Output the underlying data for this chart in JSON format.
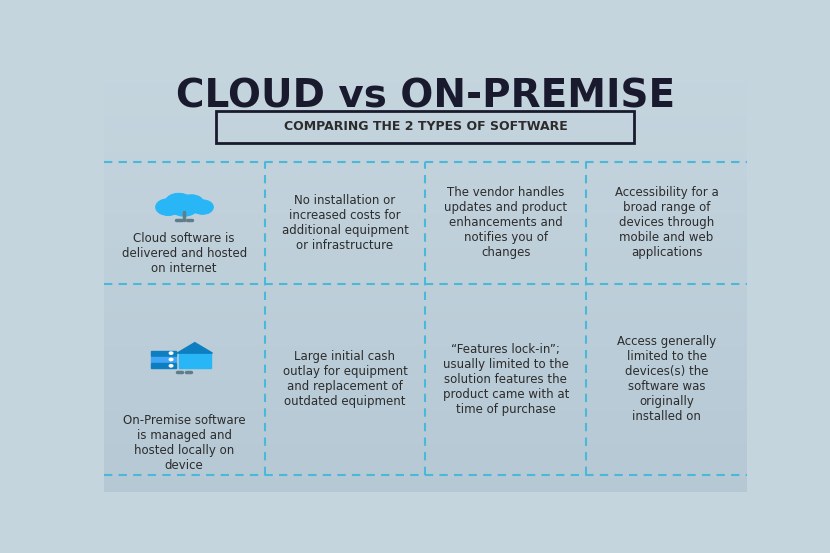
{
  "title": "CLOUD vs ON-PREMISE",
  "subtitle": "COMPARING THE 2 TYPES OF SOFTWARE",
  "bg_color_top": "#c5d5de",
  "bg_color_bottom": "#b5c8d4",
  "grid_line_color": "#4ab8d8",
  "title_color": "#1a1a2e",
  "text_color": "#2c2c2c",
  "subtitle_box_color": "#1a1a2e",
  "row1_texts": [
    "Cloud software is\ndelivered and hosted\non internet",
    "No installation or\nincreased costs for\nadditional equipment\nor infrastructure",
    "The vendor handles\nupdates and product\nenhancements and\nnotifies you of\nchanges",
    "Accessibility for a\nbroad range of\ndevices through\nmobile and web\napplications"
  ],
  "row2_texts": [
    "On-Premise software\nis managed and\nhosted locally on\ndevice",
    "Large initial cash\noutlay for equipment\nand replacement of\noutdated equipment",
    "“Features lock-in”;\nusually limited to the\nsolution features the\nproduct came with at\ntime of purchase",
    "Access generally\nlimited to the\ndevices(s) the\nsoftware was\noriginally\ninstalled on"
  ],
  "cloud_color": "#29b6f6",
  "cloud_dark": "#0d7fc0",
  "server_color": "#29b6f6",
  "server_dark": "#0d7fc0",
  "accent_color": "#2196F3"
}
